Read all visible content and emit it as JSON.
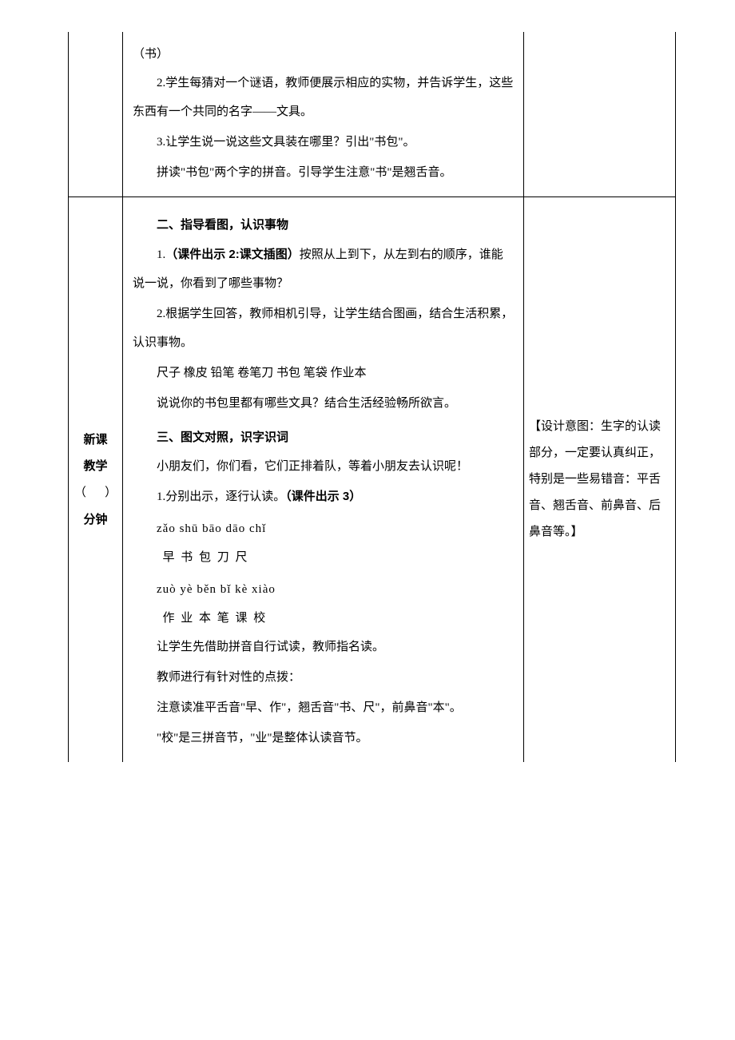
{
  "row1": {
    "p1": "（书）",
    "p2": "2.学生每猜对一个谜语，教师便展示相应的实物，并告诉学生，这些东西有一个共同的名字——文具。",
    "p3": "3.让学生说一说这些文具装在哪里？引出\"书包\"。",
    "p4": "拼读\"书包\"两个字的拼音。引导学生注意\"书\"是翘舌音。"
  },
  "row2": {
    "left_label1": "新课",
    "left_label2": "教学",
    "left_paren_open": "（",
    "left_paren_close": "）",
    "left_label3": "分钟",
    "h2": "二、指导看图，认识事物",
    "p5a": "1.",
    "p5b": "（课件出示 2:课文插图）",
    "p5c": "按照从上到下，从左到右的顺序，谁能说一说，你看到了哪些事物？",
    "p6": "2.根据学生回答，教师相机引导，让学生结合图画，结合生活积累，认识事物。",
    "p7": "尺子 橡皮 铅笔 卷笔刀 书包 笔袋 作业本",
    "p8": "说说你的书包里都有哪些文具？结合生活经验畅所欲言。",
    "h3": "三、图文对照，识字识词",
    "p9": "小朋友们，你们看，它们正排着队，等着小朋友去认识呢！",
    "p10a": "1.分别出示，逐行认读。",
    "p10b": "（课件出示 3）",
    "pinyin1": "zǎo shū bāo dāo chǐ",
    "hanzi1": "早  书  包  刀  尺",
    "pinyin2": "zuò yè běn bǐ kè xiào",
    "hanzi2": "作  业 本  笔 课 校",
    "p11": "让学生先借助拼音自行试读，教师指名读。",
    "p12": "教师进行有针对性的点拨：",
    "p13": "注意读准平舌音\"早、作\"，翘舌音\"书、尺\"，前鼻音\"本\"。",
    "p14": "\"校\"是三拼音节，\"业\"是整体认读音节。",
    "design_intent": "【设计意图：生字的认读部分，一定要认真纠正，特别是一些易错音：平舌音、翘舌音、前鼻音、后鼻音等。】"
  }
}
